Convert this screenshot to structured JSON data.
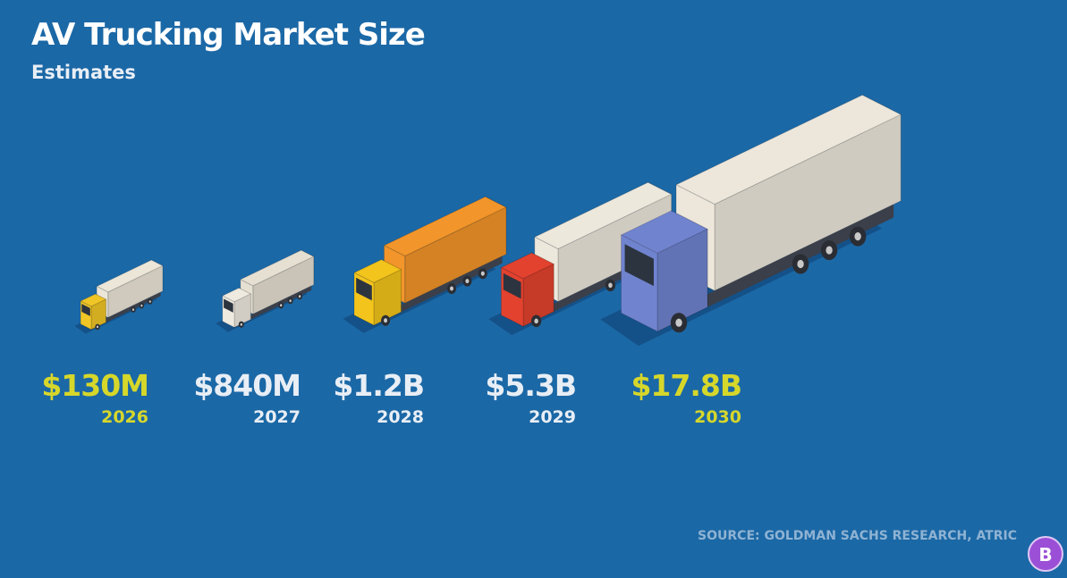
{
  "header": {
    "title": "AV Trucking Market Size",
    "subtitle": "Estimates"
  },
  "items": [
    {
      "value": "$130M",
      "year": "2026",
      "color": "#d6d72b"
    },
    {
      "value": "$840M",
      "year": "2027",
      "color": "#e8eef5"
    },
    {
      "value": "$1.2B",
      "year": "2028",
      "color": "#e8eef5"
    },
    {
      "value": "$5.3B",
      "year": "2029",
      "color": "#e8eef5"
    },
    {
      "value": "$17.8B",
      "year": "2030",
      "color": "#d6d72b"
    }
  ],
  "source": "SOURCE: GOLDMAN SACHS RESEARCH, ATRIC",
  "logo": "B"
}
